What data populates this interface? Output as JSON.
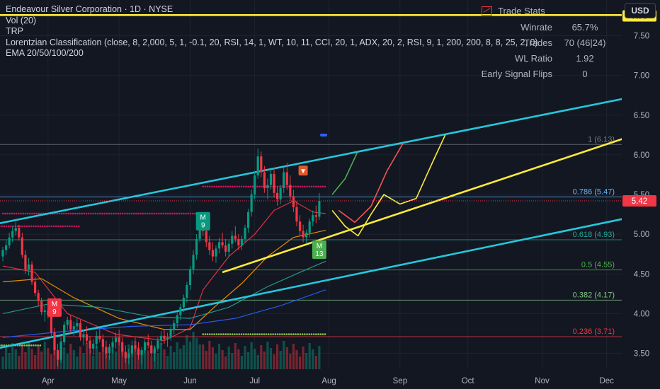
{
  "legend": {
    "title": "Endeavour Silver Corporation · 1D · NYSE",
    "vol": "Vol (20)",
    "trp": "TRP",
    "lorentzian": "Lorentzian Classification (close, 8, 2,000, 5, 1, -0.1, 20, RSI, 14, 1, WT, 10, 11, CCI, 20, 1, ADX, 20, 2, RSI, 9, 1, 200, 200, 8, 8, 25, 2, 0)",
    "ema": "EMA 20/50/100/200"
  },
  "trade_stats": {
    "title": "Trade Stats",
    "rows": [
      {
        "label": "Winrate",
        "value": "65.7%"
      },
      {
        "label": "Trades",
        "value": "70 (46|24)"
      },
      {
        "label": "WL Ratio",
        "value": "1.92"
      },
      {
        "label": "Early Signal Flips",
        "value": "0"
      }
    ]
  },
  "currency_button": "USD",
  "colors": {
    "background": "#131722",
    "up": "#089981",
    "down": "#f23645",
    "channel": "#26c6da",
    "trend": "#ffeb3b",
    "ema20": "#f23645",
    "ema50": "#ff9800",
    "ema100": "#26a69a",
    "ema200": "#2962ff"
  },
  "chart_data": {
    "type": "candlestick",
    "y_axis": {
      "range": [
        3.3,
        7.95
      ],
      "ticks": [
        "3.50",
        "4.00",
        "4.50",
        "5.00",
        "5.50",
        "6.00",
        "6.50",
        "7.00",
        "7.50"
      ],
      "current_price": {
        "label": "5.42",
        "value": 5.42
      },
      "line_label": {
        "label": "7.75",
        "value": 7.75
      }
    },
    "x_axis": {
      "months": [
        {
          "label": "Apr",
          "index": 14
        },
        {
          "label": "May",
          "index": 36
        },
        {
          "label": "Jun",
          "index": 58
        },
        {
          "label": "Jul",
          "index": 78
        },
        {
          "label": "Aug",
          "index": 101
        },
        {
          "label": "Sep",
          "index": 123
        },
        {
          "label": "Oct",
          "index": 144
        },
        {
          "label": "Nov",
          "index": 167
        },
        {
          "label": "Dec",
          "index": 187
        }
      ]
    },
    "candles": [
      [
        4.72,
        4.84,
        4.66,
        4.8
      ],
      [
        4.8,
        4.92,
        4.74,
        4.86
      ],
      [
        4.86,
        5.02,
        4.82,
        4.96
      ],
      [
        4.96,
        5.1,
        4.9,
        5.04
      ],
      [
        5.04,
        5.15,
        4.98,
        5.08
      ],
      [
        5.08,
        5.12,
        4.92,
        4.96
      ],
      [
        4.96,
        5.02,
        4.7,
        4.74
      ],
      [
        4.74,
        4.8,
        4.5,
        4.56
      ],
      [
        4.56,
        4.7,
        4.48,
        4.62
      ],
      [
        4.62,
        4.66,
        4.36,
        4.4
      ],
      [
        4.4,
        4.46,
        4.22,
        4.26
      ],
      [
        4.26,
        4.3,
        4.1,
        4.16
      ],
      [
        4.16,
        4.2,
        3.98,
        4.02
      ],
      [
        4.02,
        4.1,
        3.9,
        4.04
      ],
      [
        4.04,
        4.12,
        3.94,
        3.98
      ],
      [
        3.98,
        4.02,
        3.7,
        3.76
      ],
      [
        3.76,
        3.82,
        3.48,
        3.54
      ],
      [
        3.54,
        3.62,
        3.34,
        3.42
      ],
      [
        3.42,
        3.7,
        3.38,
        3.64
      ],
      [
        3.64,
        3.9,
        3.6,
        3.86
      ],
      [
        3.86,
        3.96,
        3.8,
        3.92
      ],
      [
        3.92,
        3.98,
        3.76,
        3.8
      ],
      [
        3.8,
        3.9,
        3.72,
        3.84
      ],
      [
        3.84,
        3.94,
        3.78,
        3.88
      ],
      [
        3.88,
        3.92,
        3.66,
        3.7
      ],
      [
        3.7,
        3.8,
        3.6,
        3.74
      ],
      [
        3.74,
        3.84,
        3.62,
        3.66
      ],
      [
        3.66,
        3.72,
        3.5,
        3.56
      ],
      [
        3.56,
        3.68,
        3.48,
        3.62
      ],
      [
        3.62,
        3.78,
        3.56,
        3.72
      ],
      [
        3.72,
        3.82,
        3.64,
        3.68
      ],
      [
        3.68,
        3.74,
        3.52,
        3.58
      ],
      [
        3.58,
        3.66,
        3.44,
        3.5
      ],
      [
        3.5,
        3.62,
        3.42,
        3.58
      ],
      [
        3.58,
        3.7,
        3.5,
        3.64
      ],
      [
        3.64,
        3.76,
        3.56,
        3.7
      ],
      [
        3.7,
        3.8,
        3.6,
        3.64
      ],
      [
        3.64,
        3.7,
        3.46,
        3.52
      ],
      [
        3.52,
        3.6,
        3.38,
        3.44
      ],
      [
        3.44,
        3.56,
        3.36,
        3.5
      ],
      [
        3.5,
        3.66,
        3.46,
        3.6
      ],
      [
        3.6,
        3.7,
        3.52,
        3.56
      ],
      [
        3.56,
        3.64,
        3.42,
        3.48
      ],
      [
        3.48,
        3.58,
        3.36,
        3.54
      ],
      [
        3.54,
        3.68,
        3.5,
        3.64
      ],
      [
        3.64,
        3.74,
        3.56,
        3.6
      ],
      [
        3.6,
        3.66,
        3.46,
        3.5
      ],
      [
        3.5,
        3.6,
        3.4,
        3.56
      ],
      [
        3.56,
        3.7,
        3.52,
        3.66
      ],
      [
        3.66,
        3.78,
        3.6,
        3.72
      ],
      [
        3.72,
        3.8,
        3.62,
        3.68
      ],
      [
        3.68,
        3.76,
        3.58,
        3.7
      ],
      [
        3.7,
        3.84,
        3.66,
        3.8
      ],
      [
        3.8,
        3.92,
        3.74,
        3.88
      ],
      [
        3.88,
        4.02,
        3.82,
        3.98
      ],
      [
        3.98,
        4.12,
        3.92,
        4.08
      ],
      [
        4.08,
        4.24,
        4.02,
        4.2
      ],
      [
        4.2,
        4.4,
        4.14,
        4.36
      ],
      [
        4.36,
        4.6,
        4.3,
        4.56
      ],
      [
        4.56,
        4.8,
        4.5,
        4.74
      ],
      [
        4.74,
        5.0,
        4.68,
        4.94
      ],
      [
        4.94,
        5.22,
        4.9,
        5.16
      ],
      [
        5.16,
        5.28,
        4.98,
        5.04
      ],
      [
        5.04,
        5.1,
        4.84,
        4.9
      ],
      [
        4.9,
        4.98,
        4.74,
        4.8
      ],
      [
        4.8,
        4.9,
        4.66,
        4.72
      ],
      [
        4.72,
        4.86,
        4.64,
        4.82
      ],
      [
        4.82,
        4.96,
        4.76,
        4.9
      ],
      [
        4.9,
        5.02,
        4.82,
        4.86
      ],
      [
        4.86,
        4.94,
        4.72,
        4.78
      ],
      [
        4.78,
        4.92,
        4.72,
        4.88
      ],
      [
        4.88,
        5.04,
        4.82,
        4.98
      ],
      [
        4.98,
        5.1,
        4.9,
        4.94
      ],
      [
        4.94,
        5.0,
        4.8,
        4.86
      ],
      [
        4.86,
        4.98,
        4.8,
        4.94
      ],
      [
        4.94,
        5.12,
        4.9,
        5.08
      ],
      [
        5.08,
        5.32,
        5.02,
        5.28
      ],
      [
        5.28,
        5.56,
        5.22,
        5.5
      ],
      [
        5.5,
        5.8,
        5.44,
        5.74
      ],
      [
        5.74,
        6.08,
        5.7,
        5.98
      ],
      [
        5.98,
        6.04,
        5.72,
        5.78
      ],
      [
        5.78,
        5.86,
        5.52,
        5.58
      ],
      [
        5.58,
        5.7,
        5.44,
        5.62
      ],
      [
        5.62,
        5.82,
        5.56,
        5.76
      ],
      [
        5.76,
        5.84,
        5.46,
        5.52
      ],
      [
        5.52,
        5.6,
        5.36,
        5.44
      ],
      [
        5.44,
        5.62,
        5.38,
        5.58
      ],
      [
        5.58,
        5.84,
        5.52,
        5.78
      ],
      [
        5.78,
        5.9,
        5.56,
        5.62
      ],
      [
        5.62,
        5.74,
        5.42,
        5.48
      ],
      [
        5.48,
        5.56,
        5.28,
        5.34
      ],
      [
        5.34,
        5.42,
        5.1,
        5.16
      ],
      [
        5.16,
        5.24,
        4.98,
        5.04
      ],
      [
        5.04,
        5.12,
        4.9,
        4.96
      ],
      [
        4.96,
        5.06,
        4.88,
        5.02
      ],
      [
        5.02,
        5.2,
        4.96,
        5.16
      ],
      [
        5.16,
        5.3,
        5.1,
        5.24
      ],
      [
        5.24,
        5.36,
        5.14,
        5.22
      ],
      [
        5.22,
        5.52,
        5.18,
        5.42
      ]
    ],
    "emas": [
      {
        "name": "EMA 20",
        "color": "#f23645",
        "points": [
          [
            0,
            4.6
          ],
          [
            10,
            4.52
          ],
          [
            20,
            4.0
          ],
          [
            35,
            3.74
          ],
          [
            50,
            3.66
          ],
          [
            58,
            3.82
          ],
          [
            62,
            4.3
          ],
          [
            70,
            4.72
          ],
          [
            78,
            5.0
          ],
          [
            84,
            5.3
          ],
          [
            90,
            5.42
          ],
          [
            96,
            5.28
          ],
          [
            100,
            5.26
          ]
        ]
      },
      {
        "name": "EMA 50",
        "color": "#ff9800",
        "points": [
          [
            0,
            4.4
          ],
          [
            12,
            4.44
          ],
          [
            22,
            4.2
          ],
          [
            36,
            3.94
          ],
          [
            50,
            3.8
          ],
          [
            58,
            3.8
          ],
          [
            66,
            4.1
          ],
          [
            74,
            4.38
          ],
          [
            82,
            4.72
          ],
          [
            90,
            4.96
          ],
          [
            100,
            5.05
          ]
        ]
      },
      {
        "name": "EMA 100",
        "color": "#26a69a",
        "points": [
          [
            0,
            4.0
          ],
          [
            14,
            4.12
          ],
          [
            30,
            4.08
          ],
          [
            46,
            3.96
          ],
          [
            58,
            3.94
          ],
          [
            70,
            4.08
          ],
          [
            82,
            4.34
          ],
          [
            92,
            4.52
          ],
          [
            100,
            4.66
          ]
        ]
      },
      {
        "name": "EMA 200",
        "color": "#2962ff",
        "points": [
          [
            0,
            3.7
          ],
          [
            20,
            3.78
          ],
          [
            40,
            3.84
          ],
          [
            58,
            3.86
          ],
          [
            72,
            3.94
          ],
          [
            86,
            4.1
          ],
          [
            100,
            4.3
          ]
        ]
      }
    ],
    "channel_lines": [
      {
        "color": "#26c6da",
        "from": [
          -2,
          5.13
        ],
        "to": [
          200,
          6.77
        ]
      },
      {
        "color": "#26c6da",
        "from": [
          -2,
          3.56
        ],
        "to": [
          200,
          5.26
        ]
      },
      {
        "color": "#ffeb3b",
        "from": [
          68,
          4.52
        ],
        "to": [
          200,
          6.31
        ]
      },
      {
        "color": "#ffeb3b",
        "from": [
          -2,
          7.76
        ],
        "to": [
          200,
          7.76
        ]
      }
    ],
    "fib_levels": [
      {
        "label": "1 (6.13)",
        "value": 6.13,
        "color": "#787b86"
      },
      {
        "label": "0.786 (5.47)",
        "value": 5.47,
        "color": "#64b5f6"
      },
      {
        "label": "0.618 (4.93)",
        "value": 4.93,
        "color": "#26a69a"
      },
      {
        "label": "0.5 (4.55)",
        "value": 4.55,
        "color": "#4caf50"
      },
      {
        "label": "0.382 (4.17)",
        "value": 4.17,
        "color": "#81c784"
      },
      {
        "label": "0.236 (3.71)",
        "value": 3.71,
        "color": "#f23645"
      }
    ],
    "projections": [
      {
        "color": "#4caf50",
        "points": [
          [
            102,
            5.5
          ],
          [
            106,
            5.7
          ],
          [
            110,
            6.05
          ]
        ]
      },
      {
        "color": "#f05454",
        "points": [
          [
            104,
            5.3
          ],
          [
            109,
            5.15
          ],
          [
            114,
            5.35
          ],
          [
            119,
            5.8
          ],
          [
            124,
            6.15
          ]
        ]
      },
      {
        "color": "#ffeb3b",
        "points": [
          [
            102,
            5.3
          ],
          [
            106,
            5.1
          ],
          [
            110,
            4.98
          ],
          [
            114,
            5.25
          ],
          [
            118,
            5.5
          ],
          [
            123,
            5.38
          ],
          [
            128,
            5.45
          ],
          [
            133,
            5.9
          ],
          [
            137,
            6.25
          ]
        ]
      }
    ],
    "markers": [
      {
        "text": "M 9",
        "index": 62,
        "value": 5.28,
        "color": "#089981",
        "dir": "up"
      },
      {
        "text": "M 13",
        "index": 98,
        "value": 4.92,
        "color": "#4caf50",
        "dir": "up"
      },
      {
        "text": "M 9",
        "index": 16,
        "value": 3.96,
        "color": "#f23645",
        "dir": "down"
      },
      {
        "text": "▼",
        "index": 93,
        "value": 5.74,
        "color": "#e05a2b",
        "dir": "down"
      }
    ]
  }
}
